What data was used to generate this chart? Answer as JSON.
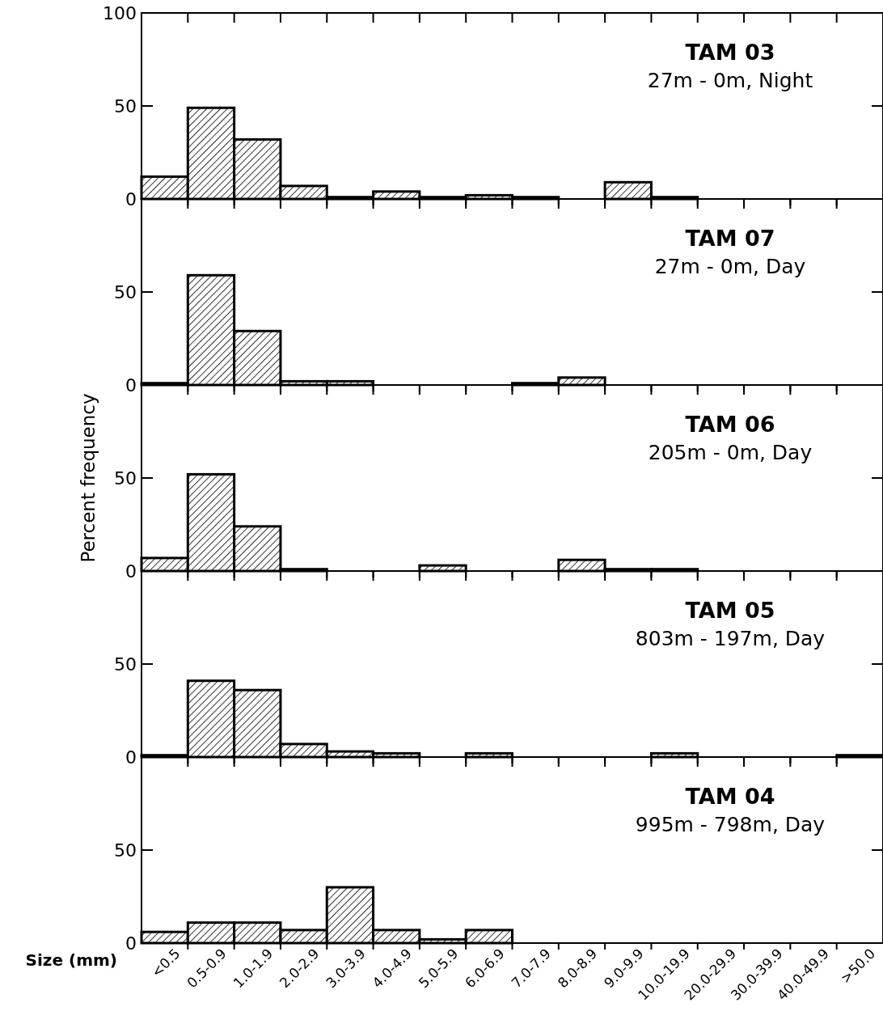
{
  "chart_data": [
    {
      "type": "bar",
      "title": "TAM 03",
      "subtitle": "27m - 0m, Night",
      "categories": [
        "<0.5",
        "0.5-0.9",
        "1.0-1.9",
        "2.0-2.9",
        "3.0-3.9",
        "4.0-4.9",
        "5.0-5.9",
        "6.0-6.9",
        "7.0-7.9",
        "8.0-8.9",
        "9.0-9.9",
        "10.0-19.9",
        "20.0-29.9",
        "30.0-39.9",
        "40.0-49.9",
        ">50.0"
      ],
      "values": [
        12,
        49,
        32,
        7,
        1,
        4,
        1,
        2,
        1,
        0,
        9,
        1,
        0,
        0,
        0,
        0
      ],
      "color": "#000000",
      "ylim": [
        0,
        100
      ],
      "yticks": [
        0,
        50,
        100
      ],
      "tick_labels": "y"
    },
    {
      "type": "bar",
      "title": "TAM 07",
      "subtitle": "27m - 0m, Day",
      "categories": [
        "<0.5",
        "0.5-0.9",
        "1.0-1.9",
        "2.0-2.9",
        "3.0-3.9",
        "4.0-4.9",
        "5.0-5.9",
        "6.0-6.9",
        "7.0-7.9",
        "8.0-8.9",
        "9.0-9.9",
        "10.0-19.9",
        "20.0-29.9",
        "30.0-39.9",
        "40.0-49.9",
        ">50.0"
      ],
      "values": [
        1,
        59,
        29,
        2,
        2,
        0,
        0,
        0,
        1,
        4,
        0,
        0,
        0,
        0,
        0,
        0
      ],
      "color": "#000000",
      "ylim": [
        0,
        100
      ],
      "yticks": [
        0,
        50
      ],
      "tick_labels": "y"
    },
    {
      "type": "bar",
      "title": "TAM 06",
      "subtitle": "205m - 0m, Day",
      "ylabel": "Percent frequency",
      "categories": [
        "<0.5",
        "0.5-0.9",
        "1.0-1.9",
        "2.0-2.9",
        "3.0-3.9",
        "4.0-4.9",
        "5.0-5.9",
        "6.0-6.9",
        "7.0-7.9",
        "8.0-8.9",
        "9.0-9.9",
        "10.0-19.9",
        "20.0-29.9",
        "30.0-39.9",
        "40.0-49.9",
        ">50.0"
      ],
      "values": [
        7,
        52,
        24,
        1,
        0,
        0,
        3,
        0,
        0,
        6,
        1,
        1,
        0,
        0,
        0,
        0
      ],
      "color": "#000000",
      "ylim": [
        0,
        100
      ],
      "yticks": [
        0,
        50
      ],
      "tick_labels": "y"
    },
    {
      "type": "bar",
      "title": "TAM 05",
      "subtitle": "803m - 197m, Day",
      "categories": [
        "<0.5",
        "0.5-0.9",
        "1.0-1.9",
        "2.0-2.9",
        "3.0-3.9",
        "4.0-4.9",
        "5.0-5.9",
        "6.0-6.9",
        "7.0-7.9",
        "8.0-8.9",
        "9.0-9.9",
        "10.0-19.9",
        "20.0-29.9",
        "30.0-39.9",
        "40.0-49.9",
        ">50.0"
      ],
      "values": [
        1,
        41,
        36,
        7,
        3,
        2,
        0,
        2,
        0,
        0,
        0,
        2,
        0,
        0,
        0,
        1
      ],
      "color": "#000000",
      "ylim": [
        0,
        100
      ],
      "yticks": [
        0,
        50
      ],
      "tick_labels": "y"
    },
    {
      "type": "bar",
      "title": "TAM 04",
      "subtitle": "995m - 798m, Day",
      "xlabel": "Size (mm)",
      "categories": [
        "<0.5",
        "0.5-0.9",
        "1.0-1.9",
        "2.0-2.9",
        "3.0-3.9",
        "4.0-4.9",
        "5.0-5.9",
        "6.0-6.9",
        "7.0-7.9",
        "8.0-8.9",
        "9.0-9.9",
        "10.0-19.9",
        "20.0-29.9",
        "30.0-39.9",
        "40.0-49.9",
        ">50.0"
      ],
      "values": [
        6,
        11,
        11,
        7,
        30,
        7,
        2,
        7,
        0,
        0,
        0,
        0,
        0,
        0,
        0,
        0
      ],
      "color": "#000000",
      "ylim": [
        0,
        100
      ],
      "yticks": [
        0,
        50
      ]
    }
  ]
}
